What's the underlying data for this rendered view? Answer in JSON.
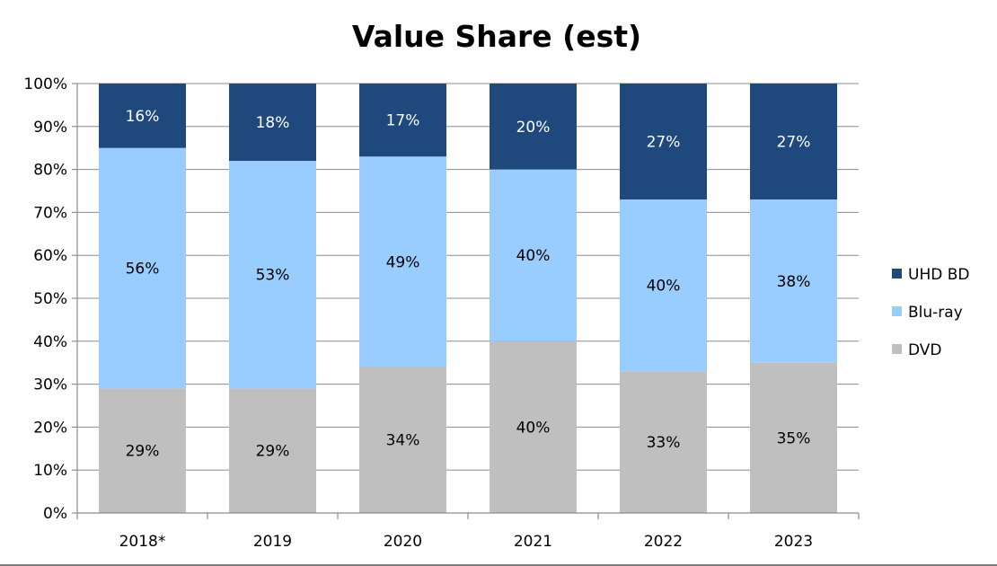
{
  "chart_data": {
    "type": "bar",
    "stacked": true,
    "title": "Value Share (est)",
    "xlabel": "",
    "ylabel": "",
    "ylim": [
      0,
      100
    ],
    "y_ticks": [
      "0%",
      "10%",
      "20%",
      "30%",
      "40%",
      "50%",
      "60%",
      "70%",
      "80%",
      "90%",
      "100%"
    ],
    "categories": [
      "2018*",
      "2019",
      "2020",
      "2021",
      "2022",
      "2023"
    ],
    "series": [
      {
        "name": "DVD",
        "color": "#bfbfbf",
        "label_color": "#000000",
        "values": [
          29,
          29,
          34,
          40,
          33,
          35
        ],
        "labels": [
          "29%",
          "29%",
          "34%",
          "40%",
          "33%",
          "35%"
        ]
      },
      {
        "name": "Blu-ray",
        "color": "#99ccff",
        "label_color": "#000000",
        "values": [
          56,
          53,
          49,
          40,
          40,
          38
        ],
        "labels": [
          "56%",
          "53%",
          "49%",
          "40%",
          "40%",
          "38%"
        ]
      },
      {
        "name": "UHD BD",
        "color": "#1f497d",
        "label_color": "#ffffff",
        "values": [
          16,
          18,
          17,
          20,
          27,
          27
        ],
        "labels": [
          "16%",
          "18%",
          "17%",
          "20%",
          "27%",
          "27%"
        ]
      }
    ],
    "legend_order": [
      "UHD BD",
      "Blu-ray",
      "DVD"
    ],
    "legend_position": "right",
    "grid": true
  }
}
